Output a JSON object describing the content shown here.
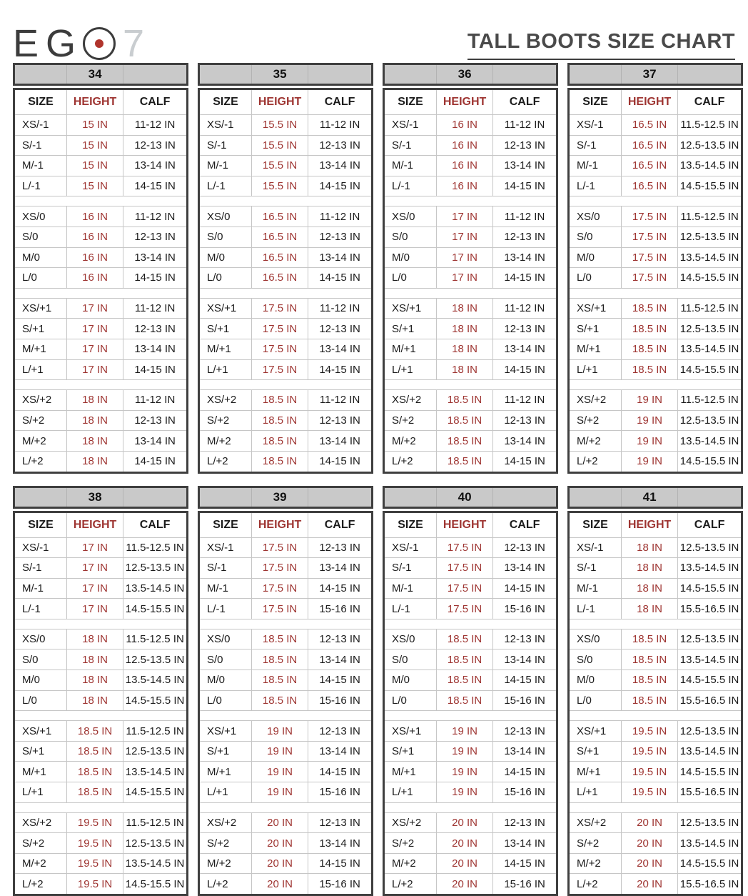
{
  "brand": {
    "name": "EGO 7",
    "letters_display": "EG",
    "seven": "7"
  },
  "title": "TALL BOOTS SIZE CHART",
  "columns": [
    "SIZE",
    "HEIGHT",
    "CALF"
  ],
  "colors": {
    "height_red": "#9e3431",
    "header_bar_gray": "#c9c9c9",
    "border_dark": "#3f3f3f",
    "title_gray": "#4a4a4a",
    "logo_dot_red": "#b0342c"
  },
  "tables": [
    {
      "number": "34",
      "rows": [
        {
          "size": "XS/-1",
          "height": "15 IN",
          "calf": "11-12 IN"
        },
        {
          "size": "S/-1",
          "height": "15 IN",
          "calf": "12-13 IN"
        },
        {
          "size": "M/-1",
          "height": "15 IN",
          "calf": "13-14 IN"
        },
        {
          "size": "L/-1",
          "height": "15 IN",
          "calf": "14-15 IN"
        },
        {
          "size": "XS/0",
          "height": "16 IN",
          "calf": "11-12 IN"
        },
        {
          "size": "S/0",
          "height": "16 IN",
          "calf": "12-13 IN"
        },
        {
          "size": "M/0",
          "height": "16 IN",
          "calf": "13-14 IN"
        },
        {
          "size": "L/0",
          "height": "16 IN",
          "calf": "14-15 IN"
        },
        {
          "size": "XS/+1",
          "height": "17 IN",
          "calf": "11-12 IN"
        },
        {
          "size": "S/+1",
          "height": "17 IN",
          "calf": "12-13 IN"
        },
        {
          "size": "M/+1",
          "height": "17 IN",
          "calf": "13-14 IN"
        },
        {
          "size": "L/+1",
          "height": "17 IN",
          "calf": "14-15 IN"
        },
        {
          "size": "XS/+2",
          "height": "18 IN",
          "calf": "11-12 IN"
        },
        {
          "size": "S/+2",
          "height": "18 IN",
          "calf": "12-13 IN"
        },
        {
          "size": "M/+2",
          "height": "18 IN",
          "calf": "13-14 IN"
        },
        {
          "size": "L/+2",
          "height": "18 IN",
          "calf": "14-15 IN"
        }
      ]
    },
    {
      "number": "35",
      "rows": [
        {
          "size": "XS/-1",
          "height": "15.5 IN",
          "calf": "11-12 IN"
        },
        {
          "size": "S/-1",
          "height": "15.5 IN",
          "calf": "12-13 IN"
        },
        {
          "size": "M/-1",
          "height": "15.5 IN",
          "calf": "13-14 IN"
        },
        {
          "size": "L/-1",
          "height": "15.5 IN",
          "calf": "14-15 IN"
        },
        {
          "size": "XS/0",
          "height": "16.5 IN",
          "calf": "11-12 IN"
        },
        {
          "size": "S/0",
          "height": "16.5 IN",
          "calf": "12-13 IN"
        },
        {
          "size": "M/0",
          "height": "16.5 IN",
          "calf": "13-14 IN"
        },
        {
          "size": "L/0",
          "height": "16.5 IN",
          "calf": "14-15 IN"
        },
        {
          "size": "XS/+1",
          "height": "17.5 IN",
          "calf": "11-12 IN"
        },
        {
          "size": "S/+1",
          "height": "17.5 IN",
          "calf": "12-13 IN"
        },
        {
          "size": "M/+1",
          "height": "17.5 IN",
          "calf": "13-14 IN"
        },
        {
          "size": "L/+1",
          "height": "17.5 IN",
          "calf": "14-15 IN"
        },
        {
          "size": "XS/+2",
          "height": "18.5 IN",
          "calf": "11-12 IN"
        },
        {
          "size": "S/+2",
          "height": "18.5 IN",
          "calf": "12-13 IN"
        },
        {
          "size": "M/+2",
          "height": "18.5 IN",
          "calf": "13-14 IN"
        },
        {
          "size": "L/+2",
          "height": "18.5 IN",
          "calf": "14-15 IN"
        }
      ]
    },
    {
      "number": "36",
      "rows": [
        {
          "size": "XS/-1",
          "height": "16 IN",
          "calf": "11-12 IN"
        },
        {
          "size": "S/-1",
          "height": "16 IN",
          "calf": "12-13 IN"
        },
        {
          "size": "M/-1",
          "height": "16 IN",
          "calf": "13-14 IN"
        },
        {
          "size": "L/-1",
          "height": "16 IN",
          "calf": "14-15 IN"
        },
        {
          "size": "XS/0",
          "height": "17 IN",
          "calf": "11-12 IN"
        },
        {
          "size": "S/0",
          "height": "17 IN",
          "calf": "12-13 IN"
        },
        {
          "size": "M/0",
          "height": "17 IN",
          "calf": "13-14 IN"
        },
        {
          "size": "L/0",
          "height": "17 IN",
          "calf": "14-15 IN"
        },
        {
          "size": "XS/+1",
          "height": "18 IN",
          "calf": "11-12 IN"
        },
        {
          "size": "S/+1",
          "height": "18 IN",
          "calf": "12-13 IN"
        },
        {
          "size": "M/+1",
          "height": "18 IN",
          "calf": "13-14 IN"
        },
        {
          "size": "L/+1",
          "height": "18 IN",
          "calf": "14-15 IN"
        },
        {
          "size": "XS/+2",
          "height": "18.5 IN",
          "calf": "11-12 IN"
        },
        {
          "size": "S/+2",
          "height": "18.5 IN",
          "calf": "12-13 IN"
        },
        {
          "size": "M/+2",
          "height": "18.5 IN",
          "calf": "13-14 IN"
        },
        {
          "size": "L/+2",
          "height": "18.5 IN",
          "calf": "14-15 IN"
        }
      ]
    },
    {
      "number": "37",
      "rows": [
        {
          "size": "XS/-1",
          "height": "16.5 IN",
          "calf": "11.5-12.5 IN"
        },
        {
          "size": "S/-1",
          "height": "16.5 IN",
          "calf": "12.5-13.5 IN"
        },
        {
          "size": "M/-1",
          "height": "16.5 IN",
          "calf": "13.5-14.5 IN"
        },
        {
          "size": "L/-1",
          "height": "16.5 IN",
          "calf": "14.5-15.5 IN"
        },
        {
          "size": "XS/0",
          "height": "17.5 IN",
          "calf": "11.5-12.5 IN"
        },
        {
          "size": "S/0",
          "height": "17.5 IN",
          "calf": "12.5-13.5 IN"
        },
        {
          "size": "M/0",
          "height": "17.5 IN",
          "calf": "13.5-14.5 IN"
        },
        {
          "size": "L/0",
          "height": "17.5 IN",
          "calf": "14.5-15.5 IN"
        },
        {
          "size": "XS/+1",
          "height": "18.5 IN",
          "calf": "11.5-12.5 IN"
        },
        {
          "size": "S/+1",
          "height": "18.5 IN",
          "calf": "12.5-13.5 IN"
        },
        {
          "size": "M/+1",
          "height": "18.5 IN",
          "calf": "13.5-14.5 IN"
        },
        {
          "size": "L/+1",
          "height": "18.5 IN",
          "calf": "14.5-15.5 IN"
        },
        {
          "size": "XS/+2",
          "height": "19 IN",
          "calf": "11.5-12.5 IN"
        },
        {
          "size": "S/+2",
          "height": "19 IN",
          "calf": "12.5-13.5 IN"
        },
        {
          "size": "M/+2",
          "height": "19 IN",
          "calf": "13.5-14.5 IN"
        },
        {
          "size": "L/+2",
          "height": "19 IN",
          "calf": "14.5-15.5 IN"
        }
      ]
    },
    {
      "number": "38",
      "rows": [
        {
          "size": "XS/-1",
          "height": "17 IN",
          "calf": "11.5-12.5 IN"
        },
        {
          "size": "S/-1",
          "height": "17 IN",
          "calf": "12.5-13.5 IN"
        },
        {
          "size": "M/-1",
          "height": "17 IN",
          "calf": "13.5-14.5 IN"
        },
        {
          "size": "L/-1",
          "height": "17 IN",
          "calf": "14.5-15.5 IN"
        },
        {
          "size": "XS/0",
          "height": "18 IN",
          "calf": "11.5-12.5 IN"
        },
        {
          "size": "S/0",
          "height": "18 IN",
          "calf": "12.5-13.5 IN"
        },
        {
          "size": "M/0",
          "height": "18 IN",
          "calf": "13.5-14.5 IN"
        },
        {
          "size": "L/0",
          "height": "18 IN",
          "calf": "14.5-15.5 IN"
        },
        {
          "size": "XS/+1",
          "height": "18.5 IN",
          "calf": "11.5-12.5 IN"
        },
        {
          "size": "S/+1",
          "height": "18.5 IN",
          "calf": "12.5-13.5 IN"
        },
        {
          "size": "M/+1",
          "height": "18.5 IN",
          "calf": "13.5-14.5 IN"
        },
        {
          "size": "L/+1",
          "height": "18.5 IN",
          "calf": "14.5-15.5 IN"
        },
        {
          "size": "XS/+2",
          "height": "19.5 IN",
          "calf": "11.5-12.5 IN"
        },
        {
          "size": "S/+2",
          "height": "19.5 IN",
          "calf": "12.5-13.5 IN"
        },
        {
          "size": "M/+2",
          "height": "19.5 IN",
          "calf": "13.5-14.5 IN"
        },
        {
          "size": "L/+2",
          "height": "19.5 IN",
          "calf": "14.5-15.5 IN"
        }
      ]
    },
    {
      "number": "39",
      "rows": [
        {
          "size": "XS/-1",
          "height": "17.5 IN",
          "calf": "12-13 IN"
        },
        {
          "size": "S/-1",
          "height": "17.5 IN",
          "calf": "13-14 IN"
        },
        {
          "size": "M/-1",
          "height": "17.5 IN",
          "calf": "14-15 IN"
        },
        {
          "size": "L/-1",
          "height": "17.5 IN",
          "calf": "15-16 IN"
        },
        {
          "size": "XS/0",
          "height": "18.5 IN",
          "calf": "12-13 IN"
        },
        {
          "size": "S/0",
          "height": "18.5 IN",
          "calf": "13-14 IN"
        },
        {
          "size": "M/0",
          "height": "18.5 IN",
          "calf": "14-15 IN"
        },
        {
          "size": "L/0",
          "height": "18.5 IN",
          "calf": "15-16 IN"
        },
        {
          "size": "XS/+1",
          "height": "19 IN",
          "calf": "12-13 IN"
        },
        {
          "size": "S/+1",
          "height": "19 IN",
          "calf": "13-14 IN"
        },
        {
          "size": "M/+1",
          "height": "19 IN",
          "calf": "14-15 IN"
        },
        {
          "size": "L/+1",
          "height": "19 IN",
          "calf": "15-16 IN"
        },
        {
          "size": "XS/+2",
          "height": "20 IN",
          "calf": "12-13 IN"
        },
        {
          "size": "S/+2",
          "height": "20 IN",
          "calf": "13-14 IN"
        },
        {
          "size": "M/+2",
          "height": "20 IN",
          "calf": "14-15 IN"
        },
        {
          "size": "L/+2",
          "height": "20 IN",
          "calf": "15-16 IN"
        }
      ]
    },
    {
      "number": "40",
      "rows": [
        {
          "size": "XS/-1",
          "height": "17.5 IN",
          "calf": "12-13 IN"
        },
        {
          "size": "S/-1",
          "height": "17.5 IN",
          "calf": "13-14 IN"
        },
        {
          "size": "M/-1",
          "height": "17.5 IN",
          "calf": "14-15 IN"
        },
        {
          "size": "L/-1",
          "height": "17.5 IN",
          "calf": "15-16 IN"
        },
        {
          "size": "XS/0",
          "height": "18.5 IN",
          "calf": "12-13 IN"
        },
        {
          "size": "S/0",
          "height": "18.5 IN",
          "calf": "13-14 IN"
        },
        {
          "size": "M/0",
          "height": "18.5 IN",
          "calf": "14-15 IN"
        },
        {
          "size": "L/0",
          "height": "18.5 IN",
          "calf": "15-16 IN"
        },
        {
          "size": "XS/+1",
          "height": "19 IN",
          "calf": "12-13 IN"
        },
        {
          "size": "S/+1",
          "height": "19 IN",
          "calf": "13-14 IN"
        },
        {
          "size": "M/+1",
          "height": "19 IN",
          "calf": "14-15 IN"
        },
        {
          "size": "L/+1",
          "height": "19 IN",
          "calf": "15-16 IN"
        },
        {
          "size": "XS/+2",
          "height": "20 IN",
          "calf": "12-13 IN"
        },
        {
          "size": "S/+2",
          "height": "20 IN",
          "calf": "13-14 IN"
        },
        {
          "size": "M/+2",
          "height": "20 IN",
          "calf": "14-15 IN"
        },
        {
          "size": "L/+2",
          "height": "20 IN",
          "calf": "15-16 IN"
        }
      ]
    },
    {
      "number": "41",
      "rows": [
        {
          "size": "XS/-1",
          "height": "18 IN",
          "calf": "12.5-13.5 IN"
        },
        {
          "size": "S/-1",
          "height": "18 IN",
          "calf": "13.5-14.5 IN"
        },
        {
          "size": "M/-1",
          "height": "18 IN",
          "calf": "14.5-15.5 IN"
        },
        {
          "size": "L/-1",
          "height": "18 IN",
          "calf": "15.5-16.5 IN"
        },
        {
          "size": "XS/0",
          "height": "18.5 IN",
          "calf": "12.5-13.5 IN"
        },
        {
          "size": "S/0",
          "height": "18.5 IN",
          "calf": "13.5-14.5 IN"
        },
        {
          "size": "M/0",
          "height": "18.5 IN",
          "calf": "14.5-15.5 IN"
        },
        {
          "size": "L/0",
          "height": "18.5 IN",
          "calf": "15.5-16.5 IN"
        },
        {
          "size": "XS/+1",
          "height": "19.5 IN",
          "calf": "12.5-13.5 IN"
        },
        {
          "size": "S/+1",
          "height": "19.5 IN",
          "calf": "13.5-14.5 IN"
        },
        {
          "size": "M/+1",
          "height": "19.5 IN",
          "calf": "14.5-15.5 IN"
        },
        {
          "size": "L/+1",
          "height": "19.5 IN",
          "calf": "15.5-16.5 IN"
        },
        {
          "size": "XS/+2",
          "height": "20 IN",
          "calf": "12.5-13.5 IN"
        },
        {
          "size": "S/+2",
          "height": "20 IN",
          "calf": "13.5-14.5 IN"
        },
        {
          "size": "M/+2",
          "height": "20 IN",
          "calf": "14.5-15.5 IN"
        },
        {
          "size": "L/+2",
          "height": "20 IN",
          "calf": "15.5-16.5 IN"
        }
      ]
    }
  ]
}
